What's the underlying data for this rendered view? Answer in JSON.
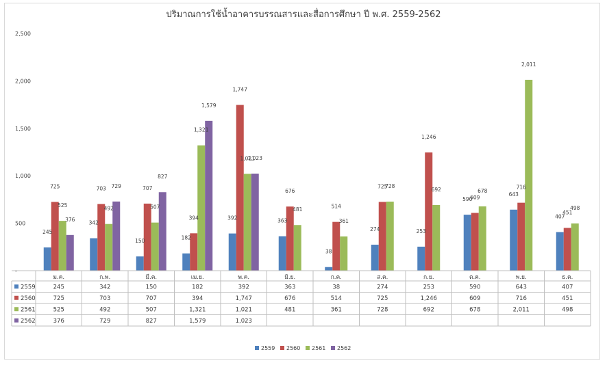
{
  "chart_data": {
    "type": "bar",
    "title": "ปริมาณการใช้น้ำอาคารบรรณสารและสื่อการศึกษา ปี พ.ศ. 2559-2562",
    "categories": [
      "ม.ค.",
      "ก.พ.",
      "มี.ค.",
      "เม.ย.",
      "พ.ค.",
      "มิ.ย.",
      "ก.ค.",
      "ส.ค.",
      "ก.ย.",
      "ต.ค.",
      "พ.ย.",
      "ธ.ค."
    ],
    "y_ticks": [
      "-",
      "500",
      "1,000",
      "1,500",
      "2,000",
      "2,500"
    ],
    "ylim": [
      0,
      2500
    ],
    "grid": false,
    "legend_position": "bottom",
    "series": [
      {
        "name": "2559",
        "color": "#4f81bd",
        "values": [
          245,
          342,
          150,
          182,
          392,
          363,
          38,
          274,
          253,
          590,
          643,
          407
        ]
      },
      {
        "name": "2560",
        "color": "#c0504d",
        "values": [
          725,
          703,
          707,
          394,
          1747,
          676,
          514,
          725,
          1246,
          609,
          716,
          451
        ]
      },
      {
        "name": "2561",
        "color": "#9bbb59",
        "values": [
          525,
          492,
          507,
          1321,
          1021,
          481,
          361,
          728,
          692,
          678,
          2011,
          498
        ]
      },
      {
        "name": "2562",
        "color": "#8064a2",
        "values": [
          376,
          729,
          827,
          1579,
          1023,
          null,
          null,
          null,
          null,
          null,
          null,
          null
        ]
      }
    ]
  }
}
